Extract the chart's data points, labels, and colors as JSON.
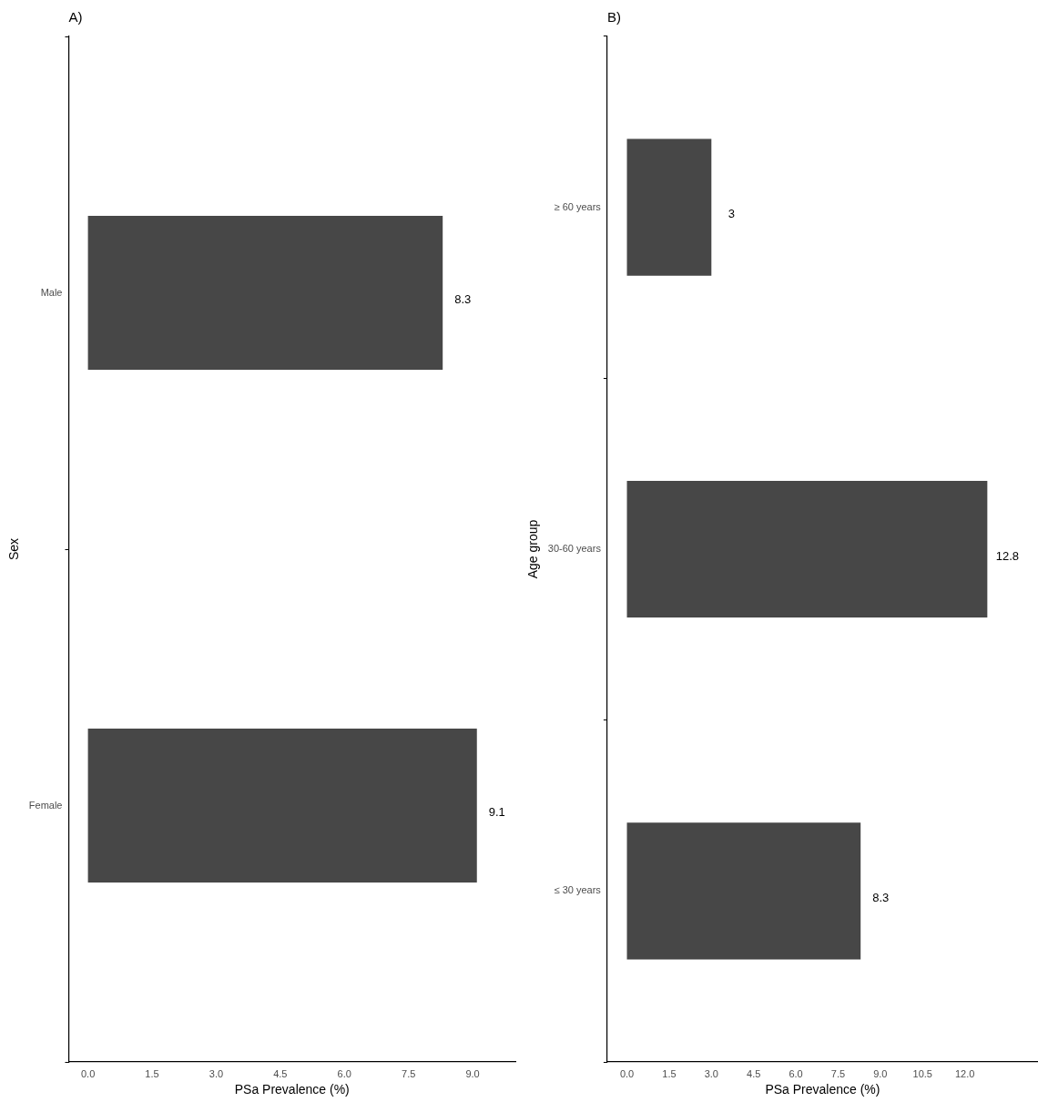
{
  "chart_data": [
    {
      "type": "bar",
      "title": "A)",
      "orientation": "horizontal",
      "categories": [
        "Male",
        "Female"
      ],
      "values": [
        8.3,
        9.1
      ],
      "color": "#474747",
      "xlabel": "PSa Prevalence (%)",
      "ylabel": "Sex",
      "xlim": [
        -0.45,
        10.0
      ],
      "grid": false,
      "legend": false,
      "data_labels": true,
      "xticks": [
        {
          "value": 0,
          "label": "0.0"
        },
        {
          "value": 1.5,
          "label": "1.5"
        },
        {
          "value": 3,
          "label": "3.0"
        },
        {
          "value": 4.5,
          "label": "4.5"
        },
        {
          "value": 6,
          "label": "6.0"
        },
        {
          "value": 7.5,
          "label": "7.5"
        },
        {
          "value": 9,
          "label": "9.0"
        }
      ]
    },
    {
      "type": "bar",
      "title": "B)",
      "orientation": "horizontal",
      "categories": [
        "≥ 60 years",
        "30-60 years",
        "≤ 30 years"
      ],
      "values": [
        3,
        12.8,
        8.3
      ],
      "color": "#474747",
      "xlabel": "PSa Prevalence (%)",
      "ylabel": "Age group",
      "xlim": [
        -0.7,
        14.6
      ],
      "grid": false,
      "legend": false,
      "data_labels": true,
      "xticks": [
        {
          "value": 0,
          "label": "0.0"
        },
        {
          "value": 1.5,
          "label": "1.5"
        },
        {
          "value": 3,
          "label": "3.0"
        },
        {
          "value": 4.5,
          "label": "4.5"
        },
        {
          "value": 6,
          "label": "6.0"
        },
        {
          "value": 7.5,
          "label": "7.5"
        },
        {
          "value": 9,
          "label": "9.0"
        },
        {
          "value": 10.5,
          "label": "10.5"
        },
        {
          "value": 12,
          "label": "12.0"
        }
      ]
    }
  ]
}
